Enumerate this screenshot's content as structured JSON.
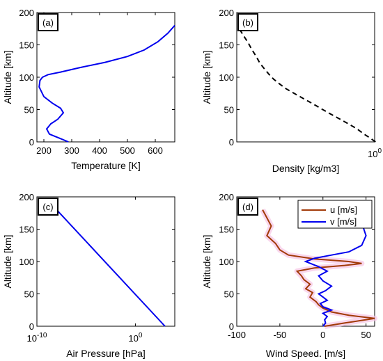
{
  "chart_data": [
    {
      "panel": "(a)",
      "type": "line",
      "xlabel": "Temperature [K]",
      "ylabel": "Altitude [km]",
      "xlim": [
        175,
        670
      ],
      "ylim": [
        0,
        200
      ],
      "xticks": [
        200,
        300,
        400,
        500,
        600
      ],
      "yticks": [
        0,
        50,
        100,
        150,
        200
      ],
      "series": [
        {
          "color": "#0000ee",
          "x": [
            288,
            260,
            220,
            210,
            225,
            250,
            270,
            260,
            230,
            200,
            183,
            186,
            195,
            215,
            260,
            330,
            420,
            500,
            560,
            610,
            645,
            670
          ],
          "y": [
            0,
            5,
            12,
            20,
            28,
            35,
            45,
            52,
            60,
            70,
            85,
            95,
            100,
            104,
            108,
            115,
            123,
            132,
            142,
            155,
            168,
            180
          ]
        }
      ]
    },
    {
      "panel": "(b)",
      "type": "line",
      "xscale": "log",
      "xlabel": "Density [kg/m3]",
      "ylabel": "Altitude [km]",
      "xlim": [
        1e-12,
        1
      ],
      "ylim": [
        0,
        200
      ],
      "xticks_labeled": [
        "10^0"
      ],
      "yticks": [
        0,
        50,
        100,
        150,
        200
      ],
      "series": [
        {
          "color": "#000000",
          "dash": "dashed",
          "x": [
            1.2,
            0.4,
            0.1,
            0.03,
            0.008,
            0.002,
            0.0005,
            0.00012,
            3e-05,
            8e-06,
            2e-06,
            5e-07,
            1e-07,
            2e-08,
            5e-09,
            1.6e-09,
            6e-10,
            2.5e-10,
            1e-10,
            5e-11,
            2e-11,
            1e-11,
            4e-12,
            1.5e-12
          ],
          "y": [
            0,
            6,
            13,
            20,
            26,
            32,
            38,
            44,
            50,
            56,
            62,
            68,
            75,
            82,
            90,
            97,
            105,
            113,
            122,
            132,
            143,
            153,
            164,
            176
          ]
        }
      ]
    },
    {
      "panel": "(c)",
      "type": "line",
      "xscale": "log",
      "xlabel": "Air Pressure [hPa]",
      "ylabel": "Altitude [km]",
      "xlim": [
        1e-10,
        10000.0
      ],
      "ylim": [
        0,
        200
      ],
      "xticks_labeled": [
        "10^-10",
        "10^0"
      ],
      "yticks": [
        0,
        50,
        100,
        150,
        200
      ],
      "series": [
        {
          "color": "#0000ee",
          "x": [
            1013,
            1e-08
          ],
          "y": [
            0,
            180
          ]
        }
      ]
    },
    {
      "panel": "(d)",
      "type": "line",
      "xlabel": "Wind Speed. [m/s]",
      "ylabel": "Altitude [km]",
      "xlim": [
        -100,
        60
      ],
      "ylim": [
        0,
        200
      ],
      "xticks": [
        -100,
        -50,
        0,
        50
      ],
      "yticks": [
        0,
        50,
        100,
        150,
        200
      ],
      "legend": "top-right",
      "series": [
        {
          "name": "u [m/s]",
          "color": "#a23a08",
          "x": [
            2,
            25,
            60,
            30,
            10,
            0,
            -5,
            -8,
            -15,
            -12,
            -20,
            -15,
            -22,
            -25,
            -30,
            -10,
            25,
            45,
            30,
            -10,
            -40,
            -50,
            -55,
            -65,
            -60,
            -70
          ],
          "y": [
            0,
            5,
            12,
            17,
            22,
            28,
            33,
            38,
            45,
            52,
            58,
            65,
            72,
            78,
            85,
            90,
            94,
            97,
            100,
            104,
            110,
            118,
            128,
            140,
            155,
            180
          ]
        },
        {
          "name": "v [m/s]",
          "color": "#0000ee",
          "x": [
            0,
            3,
            2,
            5,
            0,
            10,
            0,
            -3,
            5,
            0,
            -5,
            3,
            10,
            0,
            -5,
            5,
            -5,
            -20,
            -10,
            10,
            30,
            45,
            50,
            45
          ],
          "y": [
            0,
            5,
            10,
            15,
            20,
            25,
            30,
            35,
            40,
            45,
            50,
            55,
            62,
            70,
            78,
            85,
            92,
            100,
            105,
            110,
            115,
            125,
            140,
            160
          ]
        }
      ]
    }
  ]
}
